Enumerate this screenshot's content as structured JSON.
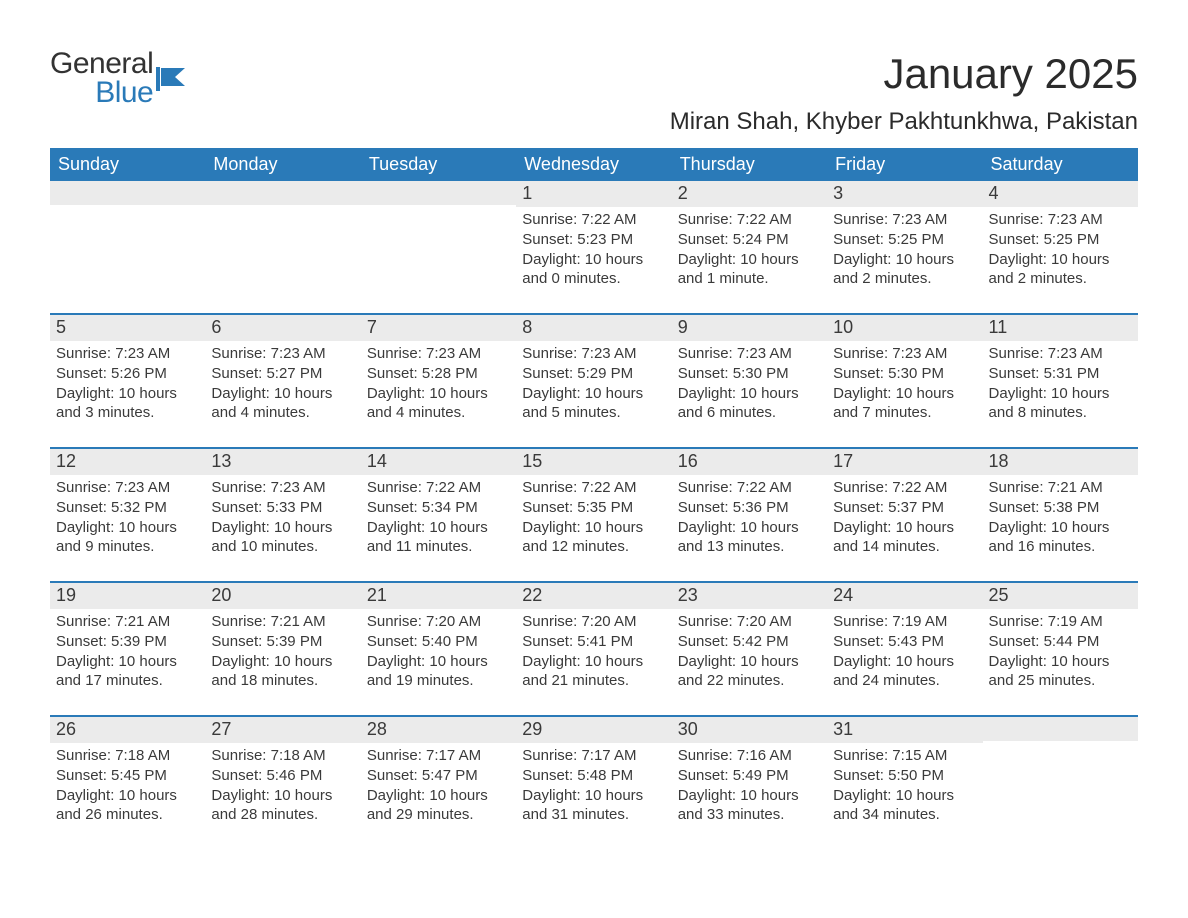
{
  "logo": {
    "word1": "General",
    "word2": "Blue",
    "icon_color": "#2a7ab8",
    "text_dark": "#333333"
  },
  "header": {
    "month_title": "January 2025",
    "location": "Miran Shah, Khyber Pakhtunkhwa, Pakistan"
  },
  "colors": {
    "header_bg": "#2a7ab8",
    "header_text": "#ffffff",
    "daynum_bg": "#ebebeb",
    "body_text": "#3a3a3a",
    "week_border": "#2a7ab8",
    "page_bg": "#ffffff"
  },
  "typography": {
    "month_title_pt": 42,
    "location_pt": 24,
    "weekday_pt": 18,
    "daynum_pt": 18,
    "body_pt": 15,
    "font_family": "Arial"
  },
  "weekdays": [
    "Sunday",
    "Monday",
    "Tuesday",
    "Wednesday",
    "Thursday",
    "Friday",
    "Saturday"
  ],
  "weeks": [
    [
      {
        "day": "",
        "lines": [
          "",
          "",
          "",
          ""
        ],
        "empty": true
      },
      {
        "day": "",
        "lines": [
          "",
          "",
          "",
          ""
        ],
        "empty": true
      },
      {
        "day": "",
        "lines": [
          "",
          "",
          "",
          ""
        ],
        "empty": true
      },
      {
        "day": "1",
        "lines": [
          "Sunrise: 7:22 AM",
          "Sunset: 5:23 PM",
          "Daylight: 10 hours",
          "and 0 minutes."
        ]
      },
      {
        "day": "2",
        "lines": [
          "Sunrise: 7:22 AM",
          "Sunset: 5:24 PM",
          "Daylight: 10 hours",
          "and 1 minute."
        ]
      },
      {
        "day": "3",
        "lines": [
          "Sunrise: 7:23 AM",
          "Sunset: 5:25 PM",
          "Daylight: 10 hours",
          "and 2 minutes."
        ]
      },
      {
        "day": "4",
        "lines": [
          "Sunrise: 7:23 AM",
          "Sunset: 5:25 PM",
          "Daylight: 10 hours",
          "and 2 minutes."
        ]
      }
    ],
    [
      {
        "day": "5",
        "lines": [
          "Sunrise: 7:23 AM",
          "Sunset: 5:26 PM",
          "Daylight: 10 hours",
          "and 3 minutes."
        ]
      },
      {
        "day": "6",
        "lines": [
          "Sunrise: 7:23 AM",
          "Sunset: 5:27 PM",
          "Daylight: 10 hours",
          "and 4 minutes."
        ]
      },
      {
        "day": "7",
        "lines": [
          "Sunrise: 7:23 AM",
          "Sunset: 5:28 PM",
          "Daylight: 10 hours",
          "and 4 minutes."
        ]
      },
      {
        "day": "8",
        "lines": [
          "Sunrise: 7:23 AM",
          "Sunset: 5:29 PM",
          "Daylight: 10 hours",
          "and 5 minutes."
        ]
      },
      {
        "day": "9",
        "lines": [
          "Sunrise: 7:23 AM",
          "Sunset: 5:30 PM",
          "Daylight: 10 hours",
          "and 6 minutes."
        ]
      },
      {
        "day": "10",
        "lines": [
          "Sunrise: 7:23 AM",
          "Sunset: 5:30 PM",
          "Daylight: 10 hours",
          "and 7 minutes."
        ]
      },
      {
        "day": "11",
        "lines": [
          "Sunrise: 7:23 AM",
          "Sunset: 5:31 PM",
          "Daylight: 10 hours",
          "and 8 minutes."
        ]
      }
    ],
    [
      {
        "day": "12",
        "lines": [
          "Sunrise: 7:23 AM",
          "Sunset: 5:32 PM",
          "Daylight: 10 hours",
          "and 9 minutes."
        ]
      },
      {
        "day": "13",
        "lines": [
          "Sunrise: 7:23 AM",
          "Sunset: 5:33 PM",
          "Daylight: 10 hours",
          "and 10 minutes."
        ]
      },
      {
        "day": "14",
        "lines": [
          "Sunrise: 7:22 AM",
          "Sunset: 5:34 PM",
          "Daylight: 10 hours",
          "and 11 minutes."
        ]
      },
      {
        "day": "15",
        "lines": [
          "Sunrise: 7:22 AM",
          "Sunset: 5:35 PM",
          "Daylight: 10 hours",
          "and 12 minutes."
        ]
      },
      {
        "day": "16",
        "lines": [
          "Sunrise: 7:22 AM",
          "Sunset: 5:36 PM",
          "Daylight: 10 hours",
          "and 13 minutes."
        ]
      },
      {
        "day": "17",
        "lines": [
          "Sunrise: 7:22 AM",
          "Sunset: 5:37 PM",
          "Daylight: 10 hours",
          "and 14 minutes."
        ]
      },
      {
        "day": "18",
        "lines": [
          "Sunrise: 7:21 AM",
          "Sunset: 5:38 PM",
          "Daylight: 10 hours",
          "and 16 minutes."
        ]
      }
    ],
    [
      {
        "day": "19",
        "lines": [
          "Sunrise: 7:21 AM",
          "Sunset: 5:39 PM",
          "Daylight: 10 hours",
          "and 17 minutes."
        ]
      },
      {
        "day": "20",
        "lines": [
          "Sunrise: 7:21 AM",
          "Sunset: 5:39 PM",
          "Daylight: 10 hours",
          "and 18 minutes."
        ]
      },
      {
        "day": "21",
        "lines": [
          "Sunrise: 7:20 AM",
          "Sunset: 5:40 PM",
          "Daylight: 10 hours",
          "and 19 minutes."
        ]
      },
      {
        "day": "22",
        "lines": [
          "Sunrise: 7:20 AM",
          "Sunset: 5:41 PM",
          "Daylight: 10 hours",
          "and 21 minutes."
        ]
      },
      {
        "day": "23",
        "lines": [
          "Sunrise: 7:20 AM",
          "Sunset: 5:42 PM",
          "Daylight: 10 hours",
          "and 22 minutes."
        ]
      },
      {
        "day": "24",
        "lines": [
          "Sunrise: 7:19 AM",
          "Sunset: 5:43 PM",
          "Daylight: 10 hours",
          "and 24 minutes."
        ]
      },
      {
        "day": "25",
        "lines": [
          "Sunrise: 7:19 AM",
          "Sunset: 5:44 PM",
          "Daylight: 10 hours",
          "and 25 minutes."
        ]
      }
    ],
    [
      {
        "day": "26",
        "lines": [
          "Sunrise: 7:18 AM",
          "Sunset: 5:45 PM",
          "Daylight: 10 hours",
          "and 26 minutes."
        ]
      },
      {
        "day": "27",
        "lines": [
          "Sunrise: 7:18 AM",
          "Sunset: 5:46 PM",
          "Daylight: 10 hours",
          "and 28 minutes."
        ]
      },
      {
        "day": "28",
        "lines": [
          "Sunrise: 7:17 AM",
          "Sunset: 5:47 PM",
          "Daylight: 10 hours",
          "and 29 minutes."
        ]
      },
      {
        "day": "29",
        "lines": [
          "Sunrise: 7:17 AM",
          "Sunset: 5:48 PM",
          "Daylight: 10 hours",
          "and 31 minutes."
        ]
      },
      {
        "day": "30",
        "lines": [
          "Sunrise: 7:16 AM",
          "Sunset: 5:49 PM",
          "Daylight: 10 hours",
          "and 33 minutes."
        ]
      },
      {
        "day": "31",
        "lines": [
          "Sunrise: 7:15 AM",
          "Sunset: 5:50 PM",
          "Daylight: 10 hours",
          "and 34 minutes."
        ]
      },
      {
        "day": "",
        "lines": [
          "",
          "",
          "",
          ""
        ],
        "empty": true
      }
    ]
  ]
}
